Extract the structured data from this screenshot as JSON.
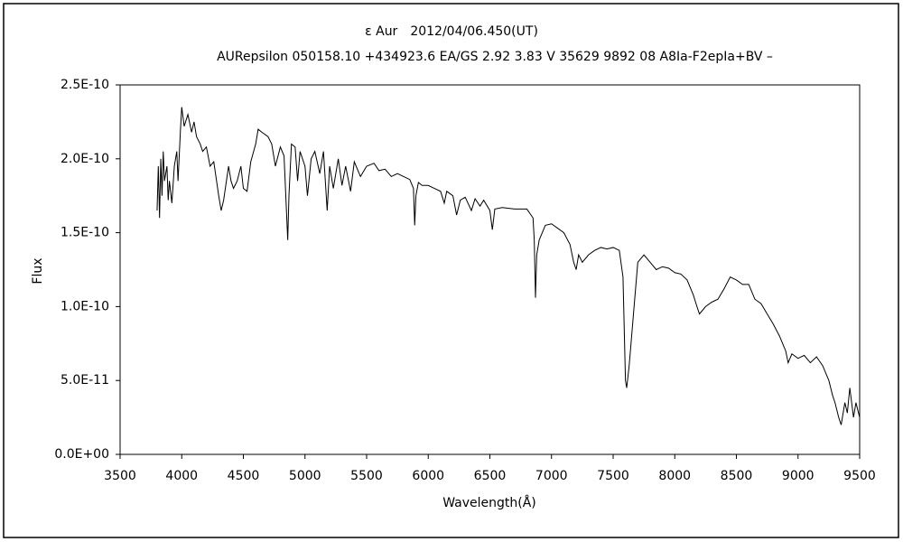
{
  "chart_data": {
    "type": "line",
    "title": "ε Aur　2012/04/06.450(UT)",
    "subtitle": "AURepsilon 050158.10 +434923.6 EA/GS 2.92 3.83 V 35629 9892 08 A8Ia-F2epIa+BV –",
    "x_label": "Wavelength(Å)",
    "y_label": "Flux",
    "xlim": [
      3500,
      9500
    ],
    "xticks": [
      3500,
      4000,
      4500,
      5000,
      5500,
      6000,
      6500,
      7000,
      7500,
      8000,
      8500,
      9000,
      9500
    ],
    "ylim": [
      0,
      2.5e-10
    ],
    "yticks": [
      {
        "value": 0,
        "label": "0.0E+00"
      },
      {
        "value": 5e-11,
        "label": "5.0E-11"
      },
      {
        "value": 1e-10,
        "label": "1.0E-10"
      },
      {
        "value": 1.5e-10,
        "label": "1.5E-10"
      },
      {
        "value": 2e-10,
        "label": "2.0E-10"
      },
      {
        "value": 2.5e-10,
        "label": "2.5E-10"
      }
    ],
    "grid": false,
    "series": [
      {
        "color": "#000000",
        "x": [
          3800,
          3810,
          3820,
          3830,
          3840,
          3850,
          3860,
          3880,
          3890,
          3900,
          3920,
          3940,
          3960,
          3970,
          3990,
          4000,
          4020,
          4050,
          4080,
          4100,
          4120,
          4150,
          4170,
          4200,
          4230,
          4260,
          4300,
          4320,
          4340,
          4380,
          4400,
          4420,
          4450,
          4480,
          4500,
          4530,
          4560,
          4600,
          4620,
          4650,
          4700,
          4730,
          4760,
          4800,
          4830,
          4860,
          4870,
          4890,
          4920,
          4940,
          4960,
          5000,
          5020,
          5050,
          5080,
          5120,
          5150,
          5180,
          5200,
          5230,
          5270,
          5300,
          5330,
          5370,
          5400,
          5450,
          5500,
          5560,
          5600,
          5650,
          5700,
          5750,
          5800,
          5850,
          5880,
          5890,
          5900,
          5920,
          5950,
          6000,
          6050,
          6100,
          6130,
          6150,
          6200,
          6230,
          6260,
          6300,
          6350,
          6380,
          6420,
          6450,
          6500,
          6520,
          6540,
          6600,
          6700,
          6800,
          6850,
          6860,
          6870,
          6880,
          6900,
          6950,
          7000,
          7050,
          7100,
          7150,
          7180,
          7200,
          7220,
          7250,
          7300,
          7350,
          7400,
          7450,
          7500,
          7550,
          7580,
          7600,
          7610,
          7630,
          7650,
          7670,
          7700,
          7750,
          7800,
          7850,
          7900,
          7950,
          8000,
          8050,
          8100,
          8150,
          8180,
          8200,
          8250,
          8300,
          8350,
          8400,
          8450,
          8500,
          8550,
          8600,
          8650,
          8700,
          8750,
          8800,
          8850,
          8900,
          8920,
          8950,
          9000,
          9050,
          9100,
          9150,
          9200,
          9250,
          9280,
          9300,
          9330,
          9350,
          9380,
          9400,
          9420,
          9450,
          9470,
          9500
        ],
        "values": [
          1.65e-10,
          1.95e-10,
          1.6e-10,
          2e-10,
          1.75e-10,
          2.05e-10,
          1.85e-10,
          1.95e-10,
          1.72e-10,
          1.85e-10,
          1.7e-10,
          1.95e-10,
          2.05e-10,
          1.85e-10,
          2.2e-10,
          2.35e-10,
          2.22e-10,
          2.3e-10,
          2.18e-10,
          2.25e-10,
          2.15e-10,
          2.1e-10,
          2.05e-10,
          2.08e-10,
          1.95e-10,
          1.98e-10,
          1.75e-10,
          1.65e-10,
          1.72e-10,
          1.95e-10,
          1.85e-10,
          1.8e-10,
          1.85e-10,
          1.95e-10,
          1.8e-10,
          1.78e-10,
          1.98e-10,
          2.1e-10,
          2.2e-10,
          2.18e-10,
          2.15e-10,
          2.1e-10,
          1.95e-10,
          2.08e-10,
          2.02e-10,
          1.45e-10,
          1.75e-10,
          2.1e-10,
          2.08e-10,
          1.85e-10,
          2.05e-10,
          1.95e-10,
          1.75e-10,
          2e-10,
          2.05e-10,
          1.9e-10,
          2.05e-10,
          1.65e-10,
          1.95e-10,
          1.8e-10,
          2e-10,
          1.82e-10,
          1.95e-10,
          1.78e-10,
          1.98e-10,
          1.88e-10,
          1.95e-10,
          1.97e-10,
          1.92e-10,
          1.93e-10,
          1.88e-10,
          1.9e-10,
          1.88e-10,
          1.86e-10,
          1.8e-10,
          1.55e-10,
          1.75e-10,
          1.84e-10,
          1.82e-10,
          1.82e-10,
          1.8e-10,
          1.78e-10,
          1.7e-10,
          1.78e-10,
          1.75e-10,
          1.62e-10,
          1.72e-10,
          1.74e-10,
          1.65e-10,
          1.73e-10,
          1.68e-10,
          1.72e-10,
          1.65e-10,
          1.52e-10,
          1.66e-10,
          1.67e-10,
          1.66e-10,
          1.66e-10,
          1.6e-10,
          1.45e-10,
          1.06e-10,
          1.35e-10,
          1.45e-10,
          1.55e-10,
          1.56e-10,
          1.53e-10,
          1.5e-10,
          1.42e-10,
          1.3e-10,
          1.25e-10,
          1.35e-10,
          1.3e-10,
          1.35e-10,
          1.38e-10,
          1.4e-10,
          1.39e-10,
          1.4e-10,
          1.38e-10,
          1.2e-10,
          5e-11,
          4.5e-11,
          6e-11,
          8e-11,
          1e-10,
          1.3e-10,
          1.35e-10,
          1.3e-10,
          1.25e-10,
          1.27e-10,
          1.26e-10,
          1.23e-10,
          1.22e-10,
          1.18e-10,
          1.08e-10,
          1e-10,
          9.5e-11,
          1e-10,
          1.03e-10,
          1.05e-10,
          1.12e-10,
          1.2e-10,
          1.18e-10,
          1.15e-10,
          1.15e-10,
          1.05e-10,
          1.02e-10,
          9.5e-11,
          8.8e-11,
          8e-11,
          7e-11,
          6.2e-11,
          6.8e-11,
          6.5e-11,
          6.7e-11,
          6.2e-11,
          6.6e-11,
          6e-11,
          5e-11,
          4e-11,
          3.5e-11,
          2.5e-11,
          2e-11,
          3.5e-11,
          2.8e-11,
          4.5e-11,
          2.5e-11,
          3.5e-11,
          2.5e-11
        ]
      }
    ]
  }
}
